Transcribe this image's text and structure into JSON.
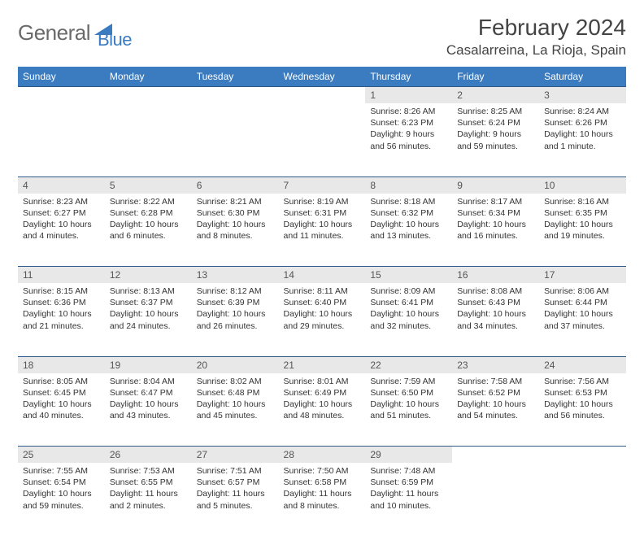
{
  "logo": {
    "part1": "General",
    "part2": "Blue"
  },
  "title": "February 2024",
  "location": "Casalarreina, La Rioja, Spain",
  "colors": {
    "header_bg": "#3b7bbf",
    "header_text": "#ffffff",
    "daynum_bg": "#e8e8e8",
    "border": "#2e5a8a",
    "logo_gray": "#6a6a6a",
    "logo_blue": "#3b7bbf",
    "body_text": "#333333"
  },
  "weekdays": [
    "Sunday",
    "Monday",
    "Tuesday",
    "Wednesday",
    "Thursday",
    "Friday",
    "Saturday"
  ],
  "weeks": [
    [
      null,
      null,
      null,
      null,
      {
        "n": "1",
        "sr": "8:26 AM",
        "ss": "6:23 PM",
        "dl": "9 hours and 56 minutes."
      },
      {
        "n": "2",
        "sr": "8:25 AM",
        "ss": "6:24 PM",
        "dl": "9 hours and 59 minutes."
      },
      {
        "n": "3",
        "sr": "8:24 AM",
        "ss": "6:26 PM",
        "dl": "10 hours and 1 minute."
      }
    ],
    [
      {
        "n": "4",
        "sr": "8:23 AM",
        "ss": "6:27 PM",
        "dl": "10 hours and 4 minutes."
      },
      {
        "n": "5",
        "sr": "8:22 AM",
        "ss": "6:28 PM",
        "dl": "10 hours and 6 minutes."
      },
      {
        "n": "6",
        "sr": "8:21 AM",
        "ss": "6:30 PM",
        "dl": "10 hours and 8 minutes."
      },
      {
        "n": "7",
        "sr": "8:19 AM",
        "ss": "6:31 PM",
        "dl": "10 hours and 11 minutes."
      },
      {
        "n": "8",
        "sr": "8:18 AM",
        "ss": "6:32 PM",
        "dl": "10 hours and 13 minutes."
      },
      {
        "n": "9",
        "sr": "8:17 AM",
        "ss": "6:34 PM",
        "dl": "10 hours and 16 minutes."
      },
      {
        "n": "10",
        "sr": "8:16 AM",
        "ss": "6:35 PM",
        "dl": "10 hours and 19 minutes."
      }
    ],
    [
      {
        "n": "11",
        "sr": "8:15 AM",
        "ss": "6:36 PM",
        "dl": "10 hours and 21 minutes."
      },
      {
        "n": "12",
        "sr": "8:13 AM",
        "ss": "6:37 PM",
        "dl": "10 hours and 24 minutes."
      },
      {
        "n": "13",
        "sr": "8:12 AM",
        "ss": "6:39 PM",
        "dl": "10 hours and 26 minutes."
      },
      {
        "n": "14",
        "sr": "8:11 AM",
        "ss": "6:40 PM",
        "dl": "10 hours and 29 minutes."
      },
      {
        "n": "15",
        "sr": "8:09 AM",
        "ss": "6:41 PM",
        "dl": "10 hours and 32 minutes."
      },
      {
        "n": "16",
        "sr": "8:08 AM",
        "ss": "6:43 PM",
        "dl": "10 hours and 34 minutes."
      },
      {
        "n": "17",
        "sr": "8:06 AM",
        "ss": "6:44 PM",
        "dl": "10 hours and 37 minutes."
      }
    ],
    [
      {
        "n": "18",
        "sr": "8:05 AM",
        "ss": "6:45 PM",
        "dl": "10 hours and 40 minutes."
      },
      {
        "n": "19",
        "sr": "8:04 AM",
        "ss": "6:47 PM",
        "dl": "10 hours and 43 minutes."
      },
      {
        "n": "20",
        "sr": "8:02 AM",
        "ss": "6:48 PM",
        "dl": "10 hours and 45 minutes."
      },
      {
        "n": "21",
        "sr": "8:01 AM",
        "ss": "6:49 PM",
        "dl": "10 hours and 48 minutes."
      },
      {
        "n": "22",
        "sr": "7:59 AM",
        "ss": "6:50 PM",
        "dl": "10 hours and 51 minutes."
      },
      {
        "n": "23",
        "sr": "7:58 AM",
        "ss": "6:52 PM",
        "dl": "10 hours and 54 minutes."
      },
      {
        "n": "24",
        "sr": "7:56 AM",
        "ss": "6:53 PM",
        "dl": "10 hours and 56 minutes."
      }
    ],
    [
      {
        "n": "25",
        "sr": "7:55 AM",
        "ss": "6:54 PM",
        "dl": "10 hours and 59 minutes."
      },
      {
        "n": "26",
        "sr": "7:53 AM",
        "ss": "6:55 PM",
        "dl": "11 hours and 2 minutes."
      },
      {
        "n": "27",
        "sr": "7:51 AM",
        "ss": "6:57 PM",
        "dl": "11 hours and 5 minutes."
      },
      {
        "n": "28",
        "sr": "7:50 AM",
        "ss": "6:58 PM",
        "dl": "11 hours and 8 minutes."
      },
      {
        "n": "29",
        "sr": "7:48 AM",
        "ss": "6:59 PM",
        "dl": "11 hours and 10 minutes."
      },
      null,
      null
    ]
  ],
  "labels": {
    "sunrise": "Sunrise:",
    "sunset": "Sunset:",
    "daylight": "Daylight:"
  }
}
